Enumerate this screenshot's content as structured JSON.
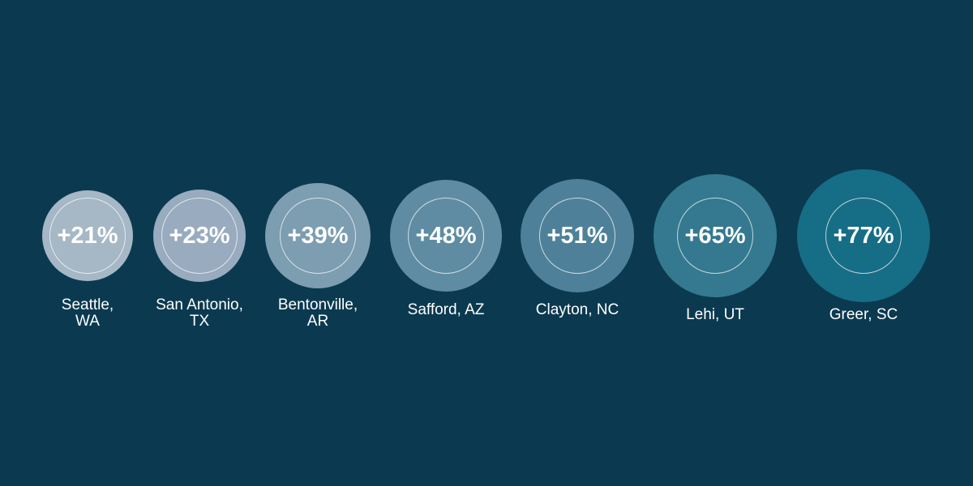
{
  "background": "#0b3a50",
  "items": [
    {
      "percent": "+21%",
      "label_lines": [
        "Seattle,",
        "WA"
      ],
      "color": "#a6b7c6"
    },
    {
      "percent": "+23%",
      "label_lines": [
        "San Antonio,",
        "TX"
      ],
      "color": "#98abbf"
    },
    {
      "percent": "+39%",
      "label_lines": [
        "Bentonville,",
        "AR"
      ],
      "color": "#7d9db0"
    },
    {
      "percent": "+48%",
      "label_lines": [
        "Safford, AZ"
      ],
      "color": "#5f8ca2"
    },
    {
      "percent": "+51%",
      "label_lines": [
        "Clayton, NC"
      ],
      "color": "#4e8199"
    },
    {
      "percent": "+65%",
      "label_lines": [
        "Lehi, UT"
      ],
      "color": "#34798f"
    },
    {
      "percent": "+77%",
      "label_lines": [
        "Greer, SC"
      ],
      "color": "#166d86"
    }
  ]
}
